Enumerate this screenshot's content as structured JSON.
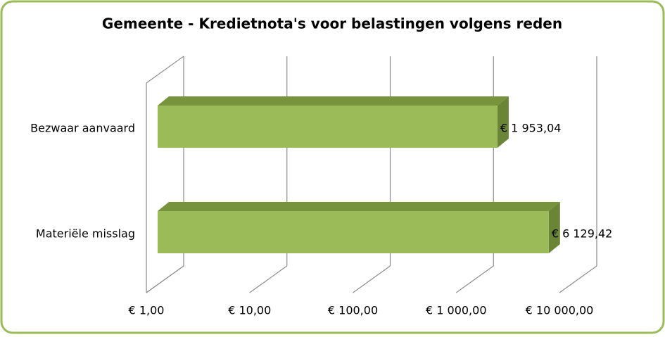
{
  "chart_data": {
    "type": "bar3d-horizontal",
    "title": "Gemeente - Kredietnota's voor belastingen volgens reden",
    "categories": [
      "Bezwaar aanvaard",
      "Materiële misslag"
    ],
    "values": [
      1953.04,
      6129.42
    ],
    "value_labels": [
      "€ 1 953,04",
      "€ 6 129,42"
    ],
    "color": "#9bbb59",
    "xlim": [
      1,
      10000
    ],
    "xlog": true,
    "xticks": [
      {
        "value": 1,
        "label": "€  1,00"
      },
      {
        "value": 10,
        "label": "€  10,00"
      },
      {
        "value": 100,
        "label": "€  100,00"
      },
      {
        "value": 1000,
        "label": "€ 1 000,00"
      },
      {
        "value": 10000,
        "label": "€ 10 000,00"
      }
    ],
    "grid": true
  }
}
